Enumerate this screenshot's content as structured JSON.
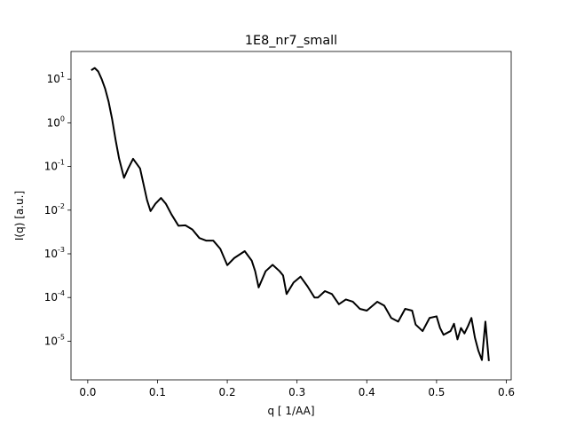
{
  "chart_data": {
    "type": "line",
    "title": "1E8_nr7_small",
    "x_label": "q [ 1/AA]",
    "y_label": "I(q) [a.u.]",
    "log_y": true,
    "color": "#000000",
    "x": [
      0.005,
      0.01,
      0.015,
      0.02,
      0.025,
      0.03,
      0.035,
      0.04,
      0.045,
      0.052,
      0.058,
      0.065,
      0.075,
      0.085,
      0.09,
      0.097,
      0.105,
      0.112,
      0.12,
      0.13,
      0.14,
      0.15,
      0.16,
      0.17,
      0.18,
      0.19,
      0.2,
      0.21,
      0.225,
      0.235,
      0.24,
      0.245,
      0.255,
      0.265,
      0.275,
      0.28,
      0.285,
      0.295,
      0.305,
      0.315,
      0.325,
      0.33,
      0.34,
      0.35,
      0.36,
      0.37,
      0.38,
      0.39,
      0.4,
      0.415,
      0.425,
      0.435,
      0.445,
      0.455,
      0.465,
      0.47,
      0.48,
      0.49,
      0.5,
      0.505,
      0.51,
      0.52,
      0.525,
      0.53,
      0.535,
      0.54,
      0.545,
      0.55,
      0.555,
      0.56,
      0.565,
      0.57,
      0.575
    ],
    "values": [
      16,
      18,
      15,
      10,
      6,
      3,
      1.2,
      0.4,
      0.15,
      0.055,
      0.09,
      0.15,
      0.09,
      0.017,
      0.0095,
      0.014,
      0.019,
      0.014,
      0.008,
      0.0044,
      0.0045,
      0.0036,
      0.0023,
      0.002,
      0.002,
      0.0013,
      0.00055,
      0.0008,
      0.00115,
      0.0007,
      0.0004,
      0.00017,
      0.0004,
      0.00056,
      0.0004,
      0.00032,
      0.00012,
      0.00022,
      0.0003,
      0.00018,
      0.0001,
      0.0001,
      0.00014,
      0.00012,
      7e-05,
      9e-05,
      8e-05,
      5.5e-05,
      5e-05,
      8e-05,
      6.5e-05,
      3.4e-05,
      2.8e-05,
      5.5e-05,
      5e-05,
      2.4e-05,
      1.7e-05,
      3.4e-05,
      3.7e-05,
      2e-05,
      1.4e-05,
      1.7e-05,
      2.5e-05,
      1.1e-05,
      2e-05,
      1.5e-05,
      2.2e-05,
      3.4e-05,
      1.2e-05,
      6e-06,
      3.7e-06,
      2.8e-05,
      3.5e-06
    ],
    "xlim": [
      -0.024,
      0.607
    ],
    "ylim": [
      1.3e-06,
      43
    ],
    "xticks": [
      {
        "value": 0,
        "label": "0.0"
      },
      0.1,
      0.2,
      0.3,
      0.4,
      0.5,
      0.6
    ],
    "yticks": [
      {
        "value": 1e-05,
        "label": "10^-5"
      },
      {
        "value": 0.0001,
        "label": "10^-4"
      },
      {
        "value": 0.001,
        "label": "10^-3"
      },
      {
        "value": 0.01,
        "label": "10^-2"
      },
      {
        "value": 0.1,
        "label": "10^-1"
      },
      {
        "value": 1,
        "label": "10^0"
      },
      {
        "value": 10,
        "label": "10^1"
      }
    ]
  }
}
